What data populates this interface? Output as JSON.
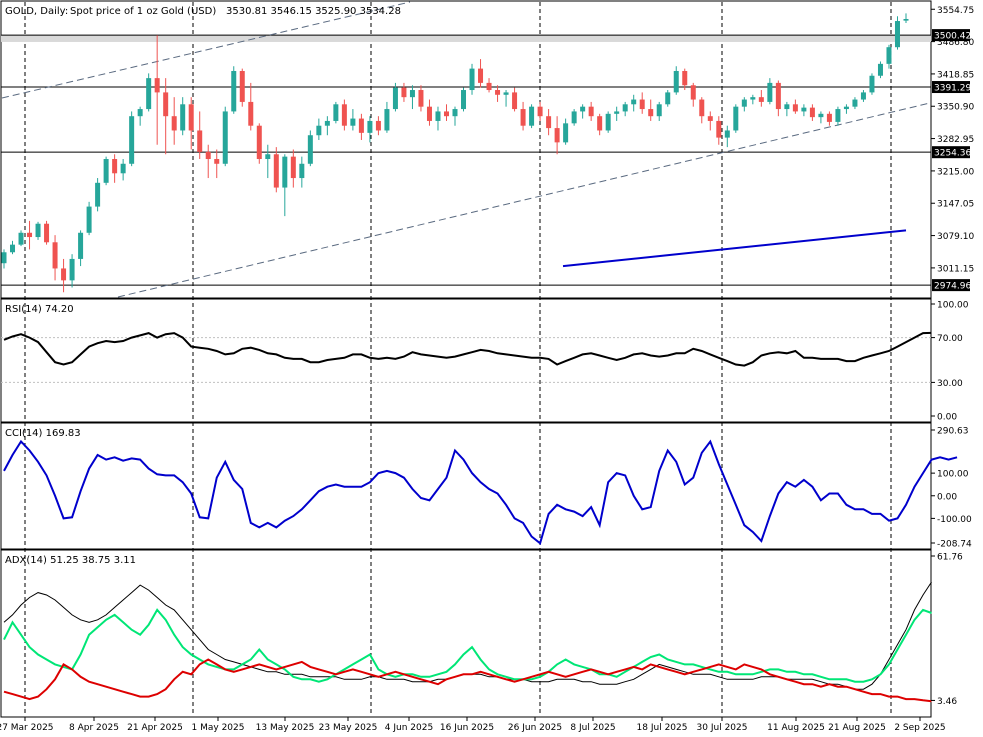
{
  "header": {
    "symbol": "GOLD, Daily:",
    "description": "Spot price of 1 oz Gold (USD)",
    "ohlc": "3530.81 3546.15 3525.90 3534.28"
  },
  "colors": {
    "bull": "#26a69a",
    "bear": "#ef5350",
    "sma": "#0000cc",
    "rsi": "#000000",
    "cci": "#0000cc",
    "adx": "#000000",
    "plus_di": "#00e676",
    "minus_di": "#dd0000",
    "zone": "#d9d9d9"
  },
  "chart_data": [
    {
      "type": "candlestick",
      "title": "GOLD, Daily: Spot price of 1 oz Gold (USD)",
      "ylim": [
        2950,
        3570
      ],
      "y_ticks": [
        "3554.75",
        "3486.80",
        "3418.85",
        "3350.90",
        "3282.95",
        "3215.00",
        "3147.05",
        "3079.10",
        "3011.15"
      ],
      "x_labels": [
        "27 Mar 2025",
        "8 Apr 2025",
        "21 Apr 2025",
        "1 May 2025",
        "13 May 2025",
        "23 May 2025",
        "4 Jun 2025",
        "16 Jun 2025",
        "26 Jun 2025",
        "8 Jul 2025",
        "18 Jul 2025",
        "30 Jul 2025",
        "11 Aug 2025",
        "21 Aug 2025",
        "2 Sep 2025"
      ],
      "levels": [
        {
          "label": "3500.42",
          "value": 3500.42
        },
        {
          "label": "3391.29",
          "value": 3391.29
        },
        {
          "label": "3254.36",
          "value": 3254.36
        },
        {
          "label": "2974.96",
          "value": 2974.96
        }
      ],
      "zone": [
        3486,
        3501
      ],
      "candles": [
        [
          3021,
          3050,
          3010,
          3044
        ],
        [
          3044,
          3068,
          3040,
          3060
        ],
        [
          3060,
          3090,
          3057,
          3085
        ],
        [
          3085,
          3110,
          3050,
          3076
        ],
        [
          3076,
          3108,
          3070,
          3104
        ],
        [
          3104,
          3110,
          3060,
          3065
        ],
        [
          3065,
          3080,
          2985,
          3010
        ],
        [
          3010,
          3030,
          2960,
          2985
        ],
        [
          2985,
          3040,
          2970,
          3030
        ],
        [
          3030,
          3090,
          3015,
          3085
        ],
        [
          3085,
          3150,
          3080,
          3140
        ],
        [
          3140,
          3200,
          3130,
          3190
        ],
        [
          3190,
          3245,
          3185,
          3240
        ],
        [
          3240,
          3250,
          3190,
          3210
        ],
        [
          3210,
          3240,
          3195,
          3230
        ],
        [
          3230,
          3340,
          3225,
          3330
        ],
        [
          3330,
          3350,
          3310,
          3345
        ],
        [
          3345,
          3420,
          3340,
          3410
        ],
        [
          3410,
          3500,
          3270,
          3380
        ],
        [
          3380,
          3410,
          3250,
          3330
        ],
        [
          3330,
          3370,
          3270,
          3300
        ],
        [
          3300,
          3370,
          3290,
          3355
        ],
        [
          3355,
          3370,
          3260,
          3300
        ],
        [
          3300,
          3340,
          3240,
          3255
        ],
        [
          3255,
          3270,
          3200,
          3240
        ],
        [
          3240,
          3260,
          3200,
          3230
        ],
        [
          3230,
          3350,
          3225,
          3340
        ],
        [
          3340,
          3435,
          3335,
          3425
        ],
        [
          3425,
          3430,
          3350,
          3360
        ],
        [
          3360,
          3400,
          3300,
          3310
        ],
        [
          3310,
          3315,
          3230,
          3240
        ],
        [
          3240,
          3270,
          3200,
          3250
        ],
        [
          3250,
          3265,
          3170,
          3180
        ],
        [
          3180,
          3250,
          3120,
          3245
        ],
        [
          3245,
          3260,
          3180,
          3200
        ],
        [
          3200,
          3245,
          3180,
          3230
        ],
        [
          3230,
          3300,
          3225,
          3290
        ],
        [
          3290,
          3325,
          3280,
          3310
        ],
        [
          3310,
          3330,
          3290,
          3320
        ],
        [
          3320,
          3360,
          3315,
          3355
        ],
        [
          3355,
          3365,
          3300,
          3310
        ],
        [
          3310,
          3345,
          3300,
          3325
        ],
        [
          3325,
          3335,
          3280,
          3295
        ],
        [
          3295,
          3330,
          3275,
          3320
        ],
        [
          3320,
          3330,
          3290,
          3300
        ],
        [
          3300,
          3360,
          3295,
          3345
        ],
        [
          3345,
          3400,
          3340,
          3390
        ],
        [
          3390,
          3400,
          3360,
          3370
        ],
        [
          3370,
          3395,
          3345,
          3385
        ],
        [
          3385,
          3395,
          3340,
          3350
        ],
        [
          3350,
          3365,
          3310,
          3320
        ],
        [
          3320,
          3350,
          3300,
          3340
        ],
        [
          3340,
          3355,
          3320,
          3330
        ],
        [
          3330,
          3350,
          3310,
          3345
        ],
        [
          3345,
          3390,
          3340,
          3385
        ],
        [
          3385,
          3440,
          3375,
          3430
        ],
        [
          3430,
          3450,
          3390,
          3400
        ],
        [
          3400,
          3410,
          3380,
          3385
        ],
        [
          3385,
          3395,
          3360,
          3375
        ],
        [
          3375,
          3385,
          3350,
          3380
        ],
        [
          3380,
          3390,
          3340,
          3345
        ],
        [
          3345,
          3360,
          3300,
          3310
        ],
        [
          3310,
          3355,
          3305,
          3350
        ],
        [
          3350,
          3360,
          3320,
          3330
        ],
        [
          3330,
          3345,
          3290,
          3305
        ],
        [
          3305,
          3330,
          3250,
          3275
        ],
        [
          3275,
          3325,
          3270,
          3315
        ],
        [
          3315,
          3345,
          3310,
          3340
        ],
        [
          3340,
          3355,
          3325,
          3350
        ],
        [
          3350,
          3360,
          3320,
          3330
        ],
        [
          3330,
          3335,
          3290,
          3300
        ],
        [
          3300,
          3340,
          3295,
          3335
        ],
        [
          3335,
          3350,
          3320,
          3340
        ],
        [
          3340,
          3360,
          3330,
          3355
        ],
        [
          3355,
          3375,
          3340,
          3365
        ],
        [
          3365,
          3380,
          3335,
          3345
        ],
        [
          3345,
          3365,
          3320,
          3330
        ],
        [
          3330,
          3360,
          3320,
          3355
        ],
        [
          3355,
          3385,
          3350,
          3380
        ],
        [
          3380,
          3435,
          3375,
          3425
        ],
        [
          3425,
          3430,
          3385,
          3395
        ],
        [
          3395,
          3400,
          3350,
          3365
        ],
        [
          3365,
          3370,
          3315,
          3330
        ],
        [
          3330,
          3340,
          3300,
          3320
        ],
        [
          3320,
          3330,
          3270,
          3285
        ],
        [
          3285,
          3310,
          3265,
          3300
        ],
        [
          3300,
          3355,
          3295,
          3350
        ],
        [
          3350,
          3370,
          3340,
          3365
        ],
        [
          3365,
          3375,
          3355,
          3370
        ],
        [
          3370,
          3385,
          3350,
          3360
        ],
        [
          3360,
          3410,
          3355,
          3400
        ],
        [
          3400,
          3405,
          3330,
          3345
        ],
        [
          3345,
          3360,
          3330,
          3355
        ],
        [
          3355,
          3365,
          3335,
          3340
        ],
        [
          3340,
          3355,
          3330,
          3348
        ],
        [
          3348,
          3355,
          3320,
          3328
        ],
        [
          3328,
          3340,
          3315,
          3335
        ],
        [
          3335,
          3340,
          3310,
          3318
        ],
        [
          3318,
          3350,
          3310,
          3345
        ],
        [
          3345,
          3355,
          3335,
          3350
        ],
        [
          3350,
          3370,
          3345,
          3365
        ],
        [
          3365,
          3385,
          3360,
          3380
        ],
        [
          3380,
          3420,
          3375,
          3415
        ],
        [
          3415,
          3445,
          3410,
          3440
        ],
        [
          3440,
          3480,
          3430,
          3475
        ],
        [
          3475,
          3540,
          3470,
          3530
        ],
        [
          3530.81,
          3546.15,
          3525.9,
          3534.28
        ]
      ],
      "sma": [
        3015,
        3090
      ]
    },
    {
      "type": "line",
      "title": "RSI(14) 74.20",
      "ylim": [
        0,
        100
      ],
      "y_ticks": [
        "100.00",
        "70.00",
        "30.00",
        "0.00"
      ],
      "values": [
        68,
        71,
        73,
        70,
        66,
        57,
        48,
        46,
        48,
        55,
        62,
        65,
        67,
        66,
        67,
        70,
        72,
        74,
        70,
        73,
        74,
        70,
        62,
        61,
        60,
        58,
        55,
        56,
        60,
        61,
        59,
        56,
        55,
        52,
        51,
        51,
        48,
        48,
        50,
        51,
        52,
        55,
        55,
        52,
        51,
        52,
        51,
        53,
        57,
        55,
        54,
        53,
        52,
        53,
        55,
        57,
        59,
        58,
        56,
        55,
        54,
        53,
        52,
        52,
        51,
        46,
        49,
        52,
        55,
        56,
        54,
        52,
        50,
        52,
        55,
        56,
        54,
        53,
        54,
        56,
        56,
        60,
        58,
        55,
        52,
        49,
        46,
        45,
        48,
        54,
        56,
        57,
        56,
        58,
        52,
        52,
        51,
        51,
        51,
        49,
        49,
        52,
        54,
        56,
        58,
        62,
        66,
        70,
        74,
        74.2
      ]
    },
    {
      "type": "line",
      "title": "CCI(14) 169.83",
      "ylim": [
        -208.74,
        290.63
      ],
      "y_ticks": [
        "290.63",
        "100.00",
        "0.00",
        "-100.00",
        "-208.74"
      ],
      "values": [
        110,
        180,
        240,
        200,
        150,
        90,
        0,
        -100,
        -95,
        20,
        120,
        180,
        160,
        170,
        155,
        165,
        160,
        120,
        95,
        90,
        90,
        60,
        10,
        -95,
        -100,
        80,
        150,
        70,
        30,
        -120,
        -140,
        -120,
        -140,
        -110,
        -90,
        -60,
        -20,
        20,
        40,
        50,
        40,
        40,
        40,
        60,
        100,
        110,
        100,
        80,
        30,
        -10,
        -20,
        30,
        80,
        200,
        160,
        100,
        60,
        30,
        10,
        -40,
        -100,
        -120,
        -180,
        -210,
        -80,
        -40,
        -60,
        -70,
        -90,
        -50,
        -130,
        60,
        100,
        90,
        0,
        -60,
        -50,
        110,
        200,
        150,
        50,
        80,
        190,
        240,
        140,
        50,
        -40,
        -130,
        -160,
        -200,
        -90,
        10,
        60,
        40,
        70,
        40,
        -20,
        10,
        10,
        -40,
        -60,
        -60,
        -80,
        -80,
        -110,
        -100,
        -40,
        40,
        100,
        160,
        170,
        160,
        169.83
      ]
    },
    {
      "type": "line",
      "title": "ADX(14) 51.25 38.75 3.11",
      "ylim": [
        0,
        61.76
      ],
      "y_ticks": [
        "61.76",
        "3.46"
      ],
      "series": [
        {
          "name": "ADX",
          "values": [
            35,
            38,
            42,
            45,
            47,
            46,
            44,
            41,
            38,
            36,
            35,
            36,
            38,
            41,
            44,
            47,
            50,
            48,
            45,
            42,
            40,
            36,
            32,
            28,
            24,
            22,
            20,
            19,
            18,
            17,
            16,
            15,
            15,
            14,
            14,
            14,
            13,
            13,
            13,
            13,
            12,
            12,
            12,
            13,
            13,
            12,
            12,
            12,
            11,
            11,
            11,
            12,
            12,
            13,
            14,
            14,
            14,
            13,
            13,
            12,
            12,
            12,
            11,
            11,
            11,
            12,
            12,
            12,
            11,
            11,
            10,
            10,
            10,
            11,
            12,
            14,
            16,
            18,
            17,
            16,
            15,
            14,
            14,
            14,
            13,
            12,
            12,
            12,
            12,
            13,
            13,
            13,
            12,
            12,
            12,
            12,
            11,
            10,
            10,
            9,
            8,
            8,
            10,
            14,
            20,
            26,
            32,
            40,
            46,
            51.25
          ]
        },
        {
          "name": "+DI",
          "values": [
            28,
            35,
            30,
            25,
            22,
            20,
            18,
            17,
            16,
            22,
            30,
            33,
            36,
            38,
            35,
            32,
            30,
            34,
            40,
            36,
            30,
            25,
            22,
            20,
            18,
            17,
            16,
            16,
            18,
            20,
            24,
            20,
            18,
            16,
            13,
            12,
            12,
            11,
            12,
            14,
            16,
            18,
            20,
            22,
            16,
            14,
            13,
            14,
            14,
            13,
            13,
            14,
            15,
            18,
            22,
            25,
            20,
            16,
            14,
            13,
            12,
            12,
            12,
            13,
            15,
            18,
            20,
            18,
            17,
            16,
            14,
            14,
            13,
            15,
            17,
            19,
            21,
            22,
            20,
            19,
            18,
            18,
            17,
            16,
            15,
            15,
            14,
            14,
            14,
            15,
            16,
            16,
            15,
            15,
            14,
            14,
            13,
            12,
            12,
            12,
            11,
            11,
            12,
            14,
            18,
            24,
            30,
            36,
            40,
            38.75
          ]
        },
        {
          "name": "-DI",
          "values": [
            7,
            6,
            5,
            4,
            5,
            8,
            12,
            18,
            16,
            13,
            11,
            10,
            9,
            8,
            7,
            6,
            5,
            5,
            6,
            8,
            12,
            15,
            14,
            18,
            20,
            18,
            16,
            15,
            16,
            17,
            18,
            17,
            16,
            17,
            18,
            19,
            17,
            16,
            15,
            14,
            15,
            16,
            15,
            14,
            13,
            14,
            15,
            14,
            13,
            12,
            11,
            10,
            12,
            13,
            14,
            14,
            15,
            14,
            13,
            12,
            11,
            12,
            13,
            14,
            15,
            14,
            13,
            14,
            15,
            16,
            15,
            14,
            15,
            16,
            17,
            16,
            18,
            17,
            16,
            15,
            14,
            15,
            16,
            17,
            18,
            17,
            16,
            18,
            17,
            16,
            14,
            13,
            12,
            11,
            10,
            10,
            9,
            10,
            9,
            9,
            8,
            7,
            6,
            6,
            5,
            5,
            4,
            4,
            3.5,
            3.11
          ]
        }
      ]
    }
  ]
}
